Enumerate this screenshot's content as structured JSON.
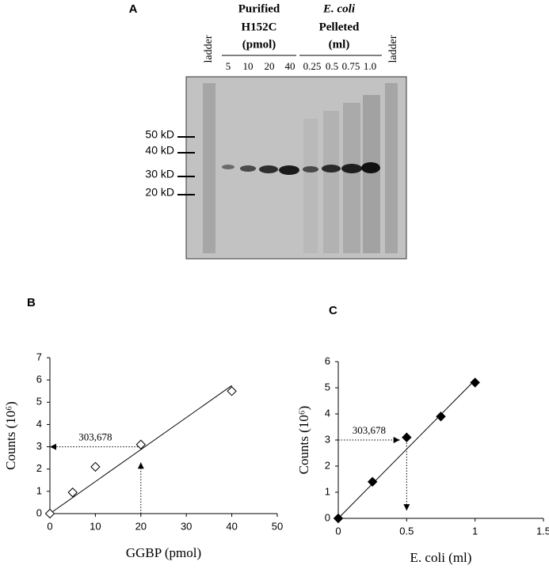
{
  "gel": {
    "label": "A",
    "group1": {
      "lines": [
        "Purified",
        "H152C",
        "(pmol)"
      ],
      "lanes": [
        "5",
        "10",
        "20",
        "40"
      ]
    },
    "group2": {
      "lines": [
        "E. coli",
        "Pelleted",
        "(ml)"
      ],
      "lanes": [
        "0.25",
        "0.5",
        "0.75",
        "1.0"
      ]
    },
    "ladder_left": "ladder",
    "ladder_right": "ladder",
    "markers": [
      "50 kD",
      "40 kD",
      "30 kD",
      "20 kD"
    ]
  },
  "chart_data": [
    {
      "type": "scatter",
      "panel": "B",
      "xlabel": "GGBP (pmol)",
      "ylabel": "Counts (10⁶)",
      "marker": "open-diamond",
      "x": [
        0,
        5,
        10,
        20,
        40
      ],
      "values": [
        0,
        0.95,
        2.1,
        3.1,
        5.5
      ],
      "trendline": {
        "x": [
          0,
          40
        ],
        "y": [
          0,
          5.75
        ]
      },
      "annotation": "303,678",
      "arrows": [
        {
          "x": [
            20,
            0
          ],
          "y": [
            3,
            3
          ]
        },
        {
          "x": [
            20,
            20
          ],
          "y": [
            0,
            2.3
          ]
        }
      ],
      "xlim": [
        0,
        50
      ],
      "xticks": [
        0,
        10,
        20,
        30,
        40,
        50
      ],
      "ylim": [
        0,
        7
      ],
      "yticks": [
        0,
        1,
        2,
        3,
        4,
        5,
        6,
        7
      ]
    },
    {
      "type": "scatter",
      "panel": "C",
      "xlabel": "E. coli (ml)",
      "ylabel": "Counts (10⁶)",
      "marker": "filled-diamond",
      "x": [
        0,
        0.25,
        0.5,
        0.75,
        1
      ],
      "values": [
        0,
        1.4,
        3.1,
        3.9,
        5.2
      ],
      "trendline": {
        "x": [
          0,
          1
        ],
        "y": [
          0,
          5.3
        ]
      },
      "annotation": "303,678",
      "arrows": [
        {
          "x": [
            0,
            0.45
          ],
          "y": [
            3,
            3
          ]
        },
        {
          "x": [
            0.5,
            0.5
          ],
          "y": [
            3,
            0.3
          ]
        }
      ],
      "xlim": [
        0,
        1.5
      ],
      "xticks": [
        0,
        0.5,
        1,
        1.5
      ],
      "ylim": [
        0,
        6
      ],
      "yticks": [
        0,
        1,
        2,
        3,
        4,
        5,
        6
      ]
    }
  ]
}
